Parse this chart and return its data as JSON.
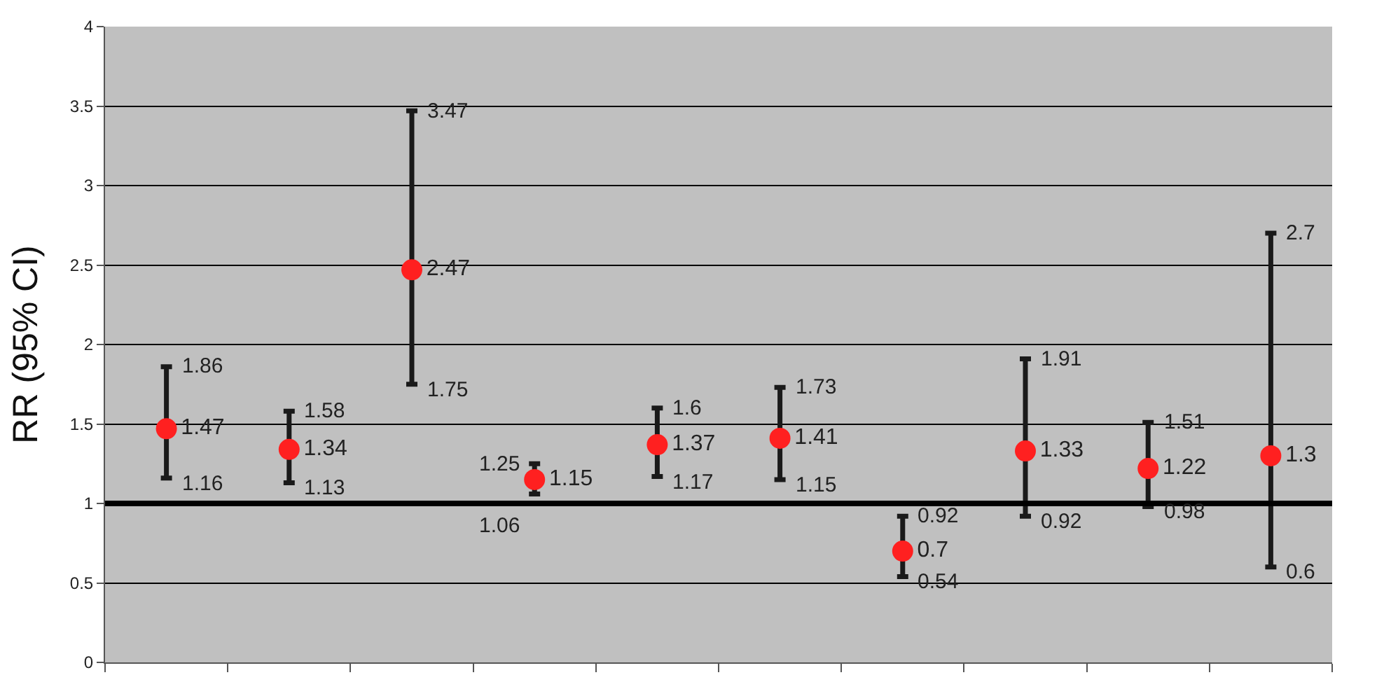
{
  "chart_data": {
    "type": "scatter",
    "ylabel": "RR (95% CI)",
    "categories": [
      null,
      null,
      null,
      null,
      null,
      null,
      null,
      null,
      null,
      null
    ],
    "series": [
      {
        "color": "#ff2020",
        "values": [
          1.47,
          1.34,
          2.47,
          1.15,
          1.37,
          1.41,
          0.7,
          1.33,
          1.22,
          1.3
        ],
        "errors": [
          [
            1.16,
            1.86
          ],
          [
            1.13,
            1.58
          ],
          [
            1.75,
            3.47
          ],
          [
            1.06,
            1.25
          ],
          [
            1.17,
            1.6
          ],
          [
            1.15,
            1.73
          ],
          [
            0.54,
            0.92
          ],
          [
            0.92,
            1.91
          ],
          [
            0.98,
            1.51
          ],
          [
            0.6,
            2.7
          ]
        ]
      }
    ],
    "data_labels": true,
    "annotations": [
      "1.86",
      "1.16",
      "1.58",
      "1.13",
      "3.47",
      "1.75",
      "1.25",
      "1.06",
      "1.6",
      "1.17",
      "1.73",
      "1.15",
      "0.92",
      "0.54",
      "1.91",
      "0.92",
      "1.51",
      "0.98",
      "2.7",
      "0.6"
    ],
    "ref_lines": [
      {
        "axis": "y",
        "value": 1,
        "color": "#000000"
      }
    ],
    "ylim": [
      0,
      4
    ],
    "yticks": [
      0,
      0.5,
      1,
      1.5,
      2,
      2.5,
      3,
      3.5,
      4
    ],
    "grid": "y",
    "marker": "circle",
    "tick_labels": "y"
  }
}
